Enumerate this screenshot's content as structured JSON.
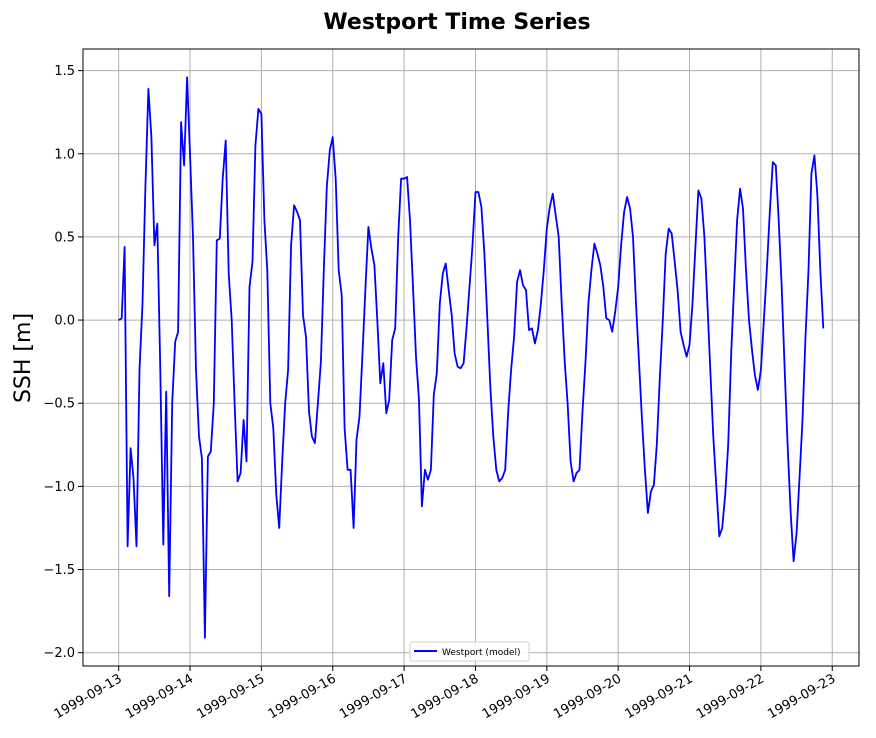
{
  "chart_data": {
    "type": "line",
    "title": "Westport Time Series",
    "xlabel": "",
    "ylabel": "SSH [m]",
    "xlim": [
      "1999-09-12 12:00",
      "1999-09-23 09:00"
    ],
    "ylim": [
      -2.08,
      1.63
    ],
    "grid": true,
    "legend_position": "lower center",
    "x_ticks": [
      "1999-09-13",
      "1999-09-14",
      "1999-09-15",
      "1999-09-16",
      "1999-09-17",
      "1999-09-18",
      "1999-09-19",
      "1999-09-20",
      "1999-09-21",
      "1999-09-22",
      "1999-09-23"
    ],
    "y_ticks": [
      -2.0,
      -1.5,
      -1.0,
      -0.5,
      0.0,
      0.5,
      1.0,
      1.5
    ],
    "series": [
      {
        "name": "Westport (model)",
        "color": "#0000ff",
        "points": [
          [
            "1999-09-13 00:00",
            0.0
          ],
          [
            "1999-09-13 01:00",
            0.01
          ],
          [
            "1999-09-13 02:00",
            0.44
          ],
          [
            "1999-09-13 03:00",
            -1.36
          ],
          [
            "1999-09-13 04:00",
            -0.77
          ],
          [
            "1999-09-13 05:00",
            -0.95
          ],
          [
            "1999-09-13 06:00",
            -1.36
          ],
          [
            "1999-09-13 07:00",
            -0.3
          ],
          [
            "1999-09-13 08:00",
            0.1
          ],
          [
            "1999-09-13 09:00",
            0.8
          ],
          [
            "1999-09-13 10:00",
            1.39
          ],
          [
            "1999-09-13 11:00",
            1.1
          ],
          [
            "1999-09-13 12:00",
            0.45
          ],
          [
            "1999-09-13 13:00",
            0.58
          ],
          [
            "1999-09-13 14:00",
            -0.3
          ],
          [
            "1999-09-13 15:00",
            -1.35
          ],
          [
            "1999-09-13 16:00",
            -0.43
          ],
          [
            "1999-09-13 17:00",
            -1.66
          ],
          [
            "1999-09-13 18:00",
            -0.5
          ],
          [
            "1999-09-13 19:00",
            -0.13
          ],
          [
            "1999-09-13 20:00",
            -0.07
          ],
          [
            "1999-09-13 21:00",
            1.19
          ],
          [
            "1999-09-13 22:00",
            0.93
          ],
          [
            "1999-09-13 23:00",
            1.46
          ],
          [
            "1999-09-14 00:00",
            1.0
          ],
          [
            "1999-09-14 01:00",
            0.5
          ],
          [
            "1999-09-14 02:00",
            -0.3
          ],
          [
            "1999-09-14 03:00",
            -0.7
          ],
          [
            "1999-09-14 04:00",
            -0.83
          ],
          [
            "1999-09-14 05:00",
            -1.91
          ],
          [
            "1999-09-14 06:00",
            -0.82
          ],
          [
            "1999-09-14 07:00",
            -0.79
          ],
          [
            "1999-09-14 08:00",
            -0.5
          ],
          [
            "1999-09-14 09:00",
            0.48
          ],
          [
            "1999-09-14 10:00",
            0.49
          ],
          [
            "1999-09-14 11:00",
            0.85
          ],
          [
            "1999-09-14 12:00",
            1.08
          ],
          [
            "1999-09-14 13:00",
            0.28
          ],
          [
            "1999-09-14 14:00",
            0.0
          ],
          [
            "1999-09-14 15:00",
            -0.5
          ],
          [
            "1999-09-14 16:00",
            -0.97
          ],
          [
            "1999-09-14 17:00",
            -0.92
          ],
          [
            "1999-09-14 18:00",
            -0.6
          ],
          [
            "1999-09-14 19:00",
            -0.85
          ],
          [
            "1999-09-14 20:00",
            0.2
          ],
          [
            "1999-09-14 21:00",
            0.35
          ],
          [
            "1999-09-14 22:00",
            1.05
          ],
          [
            "1999-09-14 23:00",
            1.27
          ],
          [
            "1999-09-15 00:00",
            1.24
          ],
          [
            "1999-09-15 01:00",
            0.6
          ],
          [
            "1999-09-15 02:00",
            0.3
          ],
          [
            "1999-09-15 03:00",
            -0.5
          ],
          [
            "1999-09-15 04:00",
            -0.65
          ],
          [
            "1999-09-15 05:00",
            -1.05
          ],
          [
            "1999-09-15 06:00",
            -1.25
          ],
          [
            "1999-09-15 07:00",
            -0.85
          ],
          [
            "1999-09-15 08:00",
            -0.5
          ],
          [
            "1999-09-15 09:00",
            -0.3
          ],
          [
            "1999-09-15 10:00",
            0.45
          ],
          [
            "1999-09-15 11:00",
            0.69
          ],
          [
            "1999-09-15 12:00",
            0.65
          ],
          [
            "1999-09-15 13:00",
            0.6
          ],
          [
            "1999-09-15 14:00",
            0.03
          ],
          [
            "1999-09-15 15:00",
            -0.1
          ],
          [
            "1999-09-15 16:00",
            -0.55
          ],
          [
            "1999-09-15 17:00",
            -0.7
          ],
          [
            "1999-09-15 18:00",
            -0.74
          ],
          [
            "1999-09-15 19:00",
            -0.5
          ],
          [
            "1999-09-15 20:00",
            -0.25
          ],
          [
            "1999-09-15 21:00",
            0.3
          ],
          [
            "1999-09-15 22:00",
            0.8
          ],
          [
            "1999-09-15 23:00",
            1.02
          ],
          [
            "1999-09-16 00:00",
            1.1
          ],
          [
            "1999-09-16 01:00",
            0.85
          ],
          [
            "1999-09-16 02:00",
            0.3
          ],
          [
            "1999-09-16 03:00",
            0.15
          ],
          [
            "1999-09-16 04:00",
            -0.65
          ],
          [
            "1999-09-16 05:00",
            -0.9
          ],
          [
            "1999-09-16 06:00",
            -0.9
          ],
          [
            "1999-09-16 07:00",
            -1.25
          ],
          [
            "1999-09-16 08:00",
            -0.72
          ],
          [
            "1999-09-16 09:00",
            -0.58
          ],
          [
            "1999-09-16 10:00",
            -0.2
          ],
          [
            "1999-09-16 11:00",
            0.2
          ],
          [
            "1999-09-16 12:00",
            0.56
          ],
          [
            "1999-09-16 13:00",
            0.43
          ],
          [
            "1999-09-16 14:00",
            0.33
          ],
          [
            "1999-09-16 15:00",
            0.0
          ],
          [
            "1999-09-16 16:00",
            -0.38
          ],
          [
            "1999-09-16 17:00",
            -0.26
          ],
          [
            "1999-09-16 18:00",
            -0.56
          ],
          [
            "1999-09-16 19:00",
            -0.48
          ],
          [
            "1999-09-16 20:00",
            -0.12
          ],
          [
            "1999-09-16 21:00",
            -0.05
          ],
          [
            "1999-09-16 22:00",
            0.5
          ],
          [
            "1999-09-16 23:00",
            0.85
          ],
          [
            "1999-09-17 00:00",
            0.85
          ],
          [
            "1999-09-17 01:00",
            0.86
          ],
          [
            "1999-09-17 02:00",
            0.6
          ],
          [
            "1999-09-17 03:00",
            0.2
          ],
          [
            "1999-09-17 04:00",
            -0.22
          ],
          [
            "1999-09-17 05:00",
            -0.48
          ],
          [
            "1999-09-17 06:00",
            -1.12
          ],
          [
            "1999-09-17 07:00",
            -0.9
          ],
          [
            "1999-09-17 08:00",
            -0.96
          ],
          [
            "1999-09-17 09:00",
            -0.9
          ],
          [
            "1999-09-17 10:00",
            -0.45
          ],
          [
            "1999-09-17 11:00",
            -0.32
          ],
          [
            "1999-09-17 12:00",
            0.1
          ],
          [
            "1999-09-17 13:00",
            0.28
          ],
          [
            "1999-09-17 14:00",
            0.34
          ],
          [
            "1999-09-17 15:00",
            0.18
          ],
          [
            "1999-09-17 16:00",
            0.03
          ],
          [
            "1999-09-17 17:00",
            -0.2
          ],
          [
            "1999-09-17 18:00",
            -0.28
          ],
          [
            "1999-09-17 19:00",
            -0.29
          ],
          [
            "1999-09-17 20:00",
            -0.26
          ],
          [
            "1999-09-17 21:00",
            -0.05
          ],
          [
            "1999-09-17 22:00",
            0.2
          ],
          [
            "1999-09-17 23:00",
            0.45
          ],
          [
            "1999-09-18 00:00",
            0.77
          ],
          [
            "1999-09-18 01:00",
            0.77
          ],
          [
            "1999-09-18 02:00",
            0.68
          ],
          [
            "1999-09-18 03:00",
            0.4
          ],
          [
            "1999-09-18 04:00",
            0.0
          ],
          [
            "1999-09-18 05:00",
            -0.4
          ],
          [
            "1999-09-18 06:00",
            -0.7
          ],
          [
            "1999-09-18 07:00",
            -0.9
          ],
          [
            "1999-09-18 08:00",
            -0.97
          ],
          [
            "1999-09-18 09:00",
            -0.95
          ],
          [
            "1999-09-18 10:00",
            -0.9
          ],
          [
            "1999-09-18 11:00",
            -0.55
          ],
          [
            "1999-09-18 12:00",
            -0.3
          ],
          [
            "1999-09-18 13:00",
            -0.1
          ],
          [
            "1999-09-18 14:00",
            0.23
          ],
          [
            "1999-09-18 15:00",
            0.3
          ],
          [
            "1999-09-18 16:00",
            0.21
          ],
          [
            "1999-09-18 17:00",
            0.18
          ],
          [
            "1999-09-18 18:00",
            -0.06
          ],
          [
            "1999-09-18 19:00",
            -0.05
          ],
          [
            "1999-09-18 20:00",
            -0.14
          ],
          [
            "1999-09-18 21:00",
            -0.06
          ],
          [
            "1999-09-18 22:00",
            0.1
          ],
          [
            "1999-09-18 23:00",
            0.3
          ],
          [
            "1999-09-19 00:00",
            0.55
          ],
          [
            "1999-09-19 01:00",
            0.68
          ],
          [
            "1999-09-19 02:00",
            0.76
          ],
          [
            "1999-09-19 03:00",
            0.63
          ],
          [
            "1999-09-19 04:00",
            0.5
          ],
          [
            "1999-09-19 05:00",
            0.1
          ],
          [
            "1999-09-19 06:00",
            -0.25
          ],
          [
            "1999-09-19 07:00",
            -0.5
          ],
          [
            "1999-09-19 08:00",
            -0.85
          ],
          [
            "1999-09-19 09:00",
            -0.97
          ],
          [
            "1999-09-19 10:00",
            -0.92
          ],
          [
            "1999-09-19 11:00",
            -0.9
          ],
          [
            "1999-09-19 12:00",
            -0.55
          ],
          [
            "1999-09-19 13:00",
            -0.25
          ],
          [
            "1999-09-19 14:00",
            0.1
          ],
          [
            "1999-09-19 15:00",
            0.3
          ],
          [
            "1999-09-19 16:00",
            0.46
          ],
          [
            "1999-09-19 17:00",
            0.4
          ],
          [
            "1999-09-19 18:00",
            0.33
          ],
          [
            "1999-09-19 19:00",
            0.2
          ],
          [
            "1999-09-19 20:00",
            0.01
          ],
          [
            "1999-09-19 21:00",
            0.0
          ],
          [
            "1999-09-19 22:00",
            -0.07
          ],
          [
            "1999-09-19 23:00",
            0.05
          ],
          [
            "1999-09-20 00:00",
            0.2
          ],
          [
            "1999-09-20 01:00",
            0.45
          ],
          [
            "1999-09-20 02:00",
            0.65
          ],
          [
            "1999-09-20 03:00",
            0.74
          ],
          [
            "1999-09-20 04:00",
            0.67
          ],
          [
            "1999-09-20 05:00",
            0.5
          ],
          [
            "1999-09-20 06:00",
            0.1
          ],
          [
            "1999-09-20 07:00",
            -0.25
          ],
          [
            "1999-09-20 08:00",
            -0.6
          ],
          [
            "1999-09-20 09:00",
            -0.9
          ],
          [
            "1999-09-20 10:00",
            -1.16
          ],
          [
            "1999-09-20 11:00",
            -1.03
          ],
          [
            "1999-09-20 12:00",
            -0.99
          ],
          [
            "1999-09-20 13:00",
            -0.75
          ],
          [
            "1999-09-20 14:00",
            -0.35
          ],
          [
            "1999-09-20 15:00",
            0.0
          ],
          [
            "1999-09-20 16:00",
            0.4
          ],
          [
            "1999-09-20 17:00",
            0.55
          ],
          [
            "1999-09-20 18:00",
            0.52
          ],
          [
            "1999-09-20 19:00",
            0.35
          ],
          [
            "1999-09-20 20:00",
            0.18
          ],
          [
            "1999-09-20 21:00",
            -0.07
          ],
          [
            "1999-09-20 22:00",
            -0.15
          ],
          [
            "1999-09-20 23:00",
            -0.22
          ],
          [
            "1999-09-21 00:00",
            -0.15
          ],
          [
            "1999-09-21 01:00",
            0.1
          ],
          [
            "1999-09-21 02:00",
            0.45
          ],
          [
            "1999-09-21 03:00",
            0.78
          ],
          [
            "1999-09-21 04:00",
            0.73
          ],
          [
            "1999-09-21 05:00",
            0.5
          ],
          [
            "1999-09-21 06:00",
            0.1
          ],
          [
            "1999-09-21 07:00",
            -0.3
          ],
          [
            "1999-09-21 08:00",
            -0.7
          ],
          [
            "1999-09-21 09:00",
            -1.0
          ],
          [
            "1999-09-21 10:00",
            -1.3
          ],
          [
            "1999-09-21 11:00",
            -1.25
          ],
          [
            "1999-09-21 12:00",
            -1.05
          ],
          [
            "1999-09-21 13:00",
            -0.75
          ],
          [
            "1999-09-21 14:00",
            -0.2
          ],
          [
            "1999-09-21 15:00",
            0.2
          ],
          [
            "1999-09-21 16:00",
            0.6
          ],
          [
            "1999-09-21 17:00",
            0.79
          ],
          [
            "1999-09-21 18:00",
            0.67
          ],
          [
            "1999-09-21 19:00",
            0.3
          ],
          [
            "1999-09-21 20:00",
            0.0
          ],
          [
            "1999-09-21 21:00",
            -0.18
          ],
          [
            "1999-09-21 22:00",
            -0.33
          ],
          [
            "1999-09-21 23:00",
            -0.42
          ],
          [
            "1999-09-22 00:00",
            -0.3
          ],
          [
            "1999-09-22 01:00",
            0.0
          ],
          [
            "1999-09-22 02:00",
            0.3
          ],
          [
            "1999-09-22 03:00",
            0.65
          ],
          [
            "1999-09-22 04:00",
            0.95
          ],
          [
            "1999-09-22 05:00",
            0.93
          ],
          [
            "1999-09-22 06:00",
            0.6
          ],
          [
            "1999-09-22 07:00",
            0.2
          ],
          [
            "1999-09-22 08:00",
            -0.3
          ],
          [
            "1999-09-22 09:00",
            -0.75
          ],
          [
            "1999-09-22 10:00",
            -1.15
          ],
          [
            "1999-09-22 11:00",
            -1.45
          ],
          [
            "1999-09-22 12:00",
            -1.28
          ],
          [
            "1999-09-22 13:00",
            -0.95
          ],
          [
            "1999-09-22 14:00",
            -0.6
          ],
          [
            "1999-09-22 15:00",
            -0.1
          ],
          [
            "1999-09-22 16:00",
            0.3
          ],
          [
            "1999-09-22 17:00",
            0.88
          ],
          [
            "1999-09-22 18:00",
            0.99
          ],
          [
            "1999-09-22 19:00",
            0.75
          ],
          [
            "1999-09-22 20:00",
            0.3
          ],
          [
            "1999-09-22 21:00",
            -0.05
          ]
        ]
      }
    ]
  }
}
